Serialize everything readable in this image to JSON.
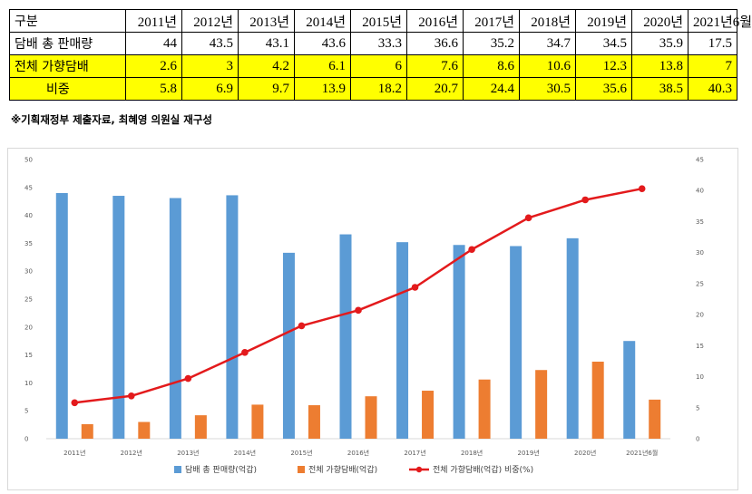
{
  "table": {
    "header_label": "구분",
    "years": [
      "2011년",
      "2012년",
      "2013년",
      "2014년",
      "2015년",
      "2016년",
      "2017년",
      "2018년",
      "2019년",
      "2020년",
      "2021년6월"
    ],
    "rows": [
      {
        "label": "담배 총 판매량",
        "values": [
          "44",
          "43.5",
          "43.1",
          "43.6",
          "33.3",
          "36.6",
          "35.2",
          "34.7",
          "34.5",
          "35.9",
          "17.5"
        ]
      },
      {
        "label": "전체 가향담배",
        "values": [
          "2.6",
          "3",
          "4.2",
          "6.1",
          "6",
          "7.6",
          "8.6",
          "10.6",
          "12.3",
          "13.8",
          "7"
        ]
      },
      {
        "label": "비중",
        "values": [
          "5.8",
          "6.9",
          "9.7",
          "13.9",
          "18.2",
          "20.7",
          "24.4",
          "30.5",
          "35.6",
          "38.5",
          "40.3"
        ]
      }
    ]
  },
  "source_note": "※기획재정부 제출자료, 최혜영 의원실 재구성",
  "chart_data": {
    "type": "bar",
    "categories": [
      "2011년",
      "2012년",
      "2013년",
      "2014년",
      "2015년",
      "2016년",
      "2017년",
      "2018년",
      "2019년",
      "2020년",
      "2021년6월"
    ],
    "series": [
      {
        "name": "담배 총 판매량(억갑)",
        "type": "bar",
        "axis": "left",
        "color": "#5b9bd5",
        "values": [
          44,
          43.5,
          43.1,
          43.6,
          33.3,
          36.6,
          35.2,
          34.7,
          34.5,
          35.9,
          17.5
        ]
      },
      {
        "name": "전체 가향담배(억갑)",
        "type": "bar",
        "axis": "left",
        "color": "#ed7d31",
        "values": [
          2.6,
          3,
          4.2,
          6.1,
          6,
          7.6,
          8.6,
          10.6,
          12.3,
          13.8,
          7
        ]
      },
      {
        "name": "전체 가향담배(억갑) 비중(%)",
        "type": "line",
        "axis": "right",
        "color": "#e31a1c",
        "values": [
          5.8,
          6.9,
          9.7,
          13.9,
          18.2,
          20.7,
          24.4,
          30.5,
          35.6,
          38.5,
          40.3
        ]
      }
    ],
    "y_left": {
      "min": 0,
      "max": 50,
      "ticks": [
        "0",
        "5",
        "10",
        "15",
        "20",
        "25",
        "30",
        "35",
        "40",
        "45",
        "50"
      ]
    },
    "y_right": {
      "min": 0,
      "max": 45,
      "ticks": [
        "0",
        "5",
        "10",
        "15",
        "20",
        "25",
        "30",
        "35",
        "40",
        "45"
      ]
    },
    "grid": false,
    "legend_position": "bottom"
  }
}
